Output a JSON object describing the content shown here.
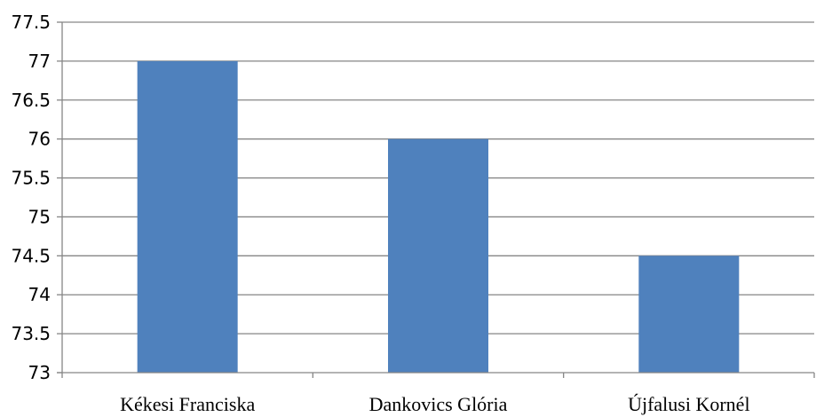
{
  "chart_data": {
    "type": "bar",
    "categories": [
      "Kékesi Franciska",
      "Dankovics Glória",
      "Újfalusi Kornél"
    ],
    "values": [
      77,
      76,
      74.5
    ],
    "ylim": [
      73,
      77.5
    ],
    "yticks": [
      "73",
      "73.5",
      "74",
      "74.5",
      "75",
      "75.5",
      "76",
      "76.5",
      "77",
      "77.5"
    ],
    "title": "",
    "xlabel": "",
    "ylabel": "",
    "grid": true,
    "legend": "none",
    "colors": {
      "bar": "#4F81BD",
      "grid": "#868686",
      "axis": "#868686"
    }
  }
}
